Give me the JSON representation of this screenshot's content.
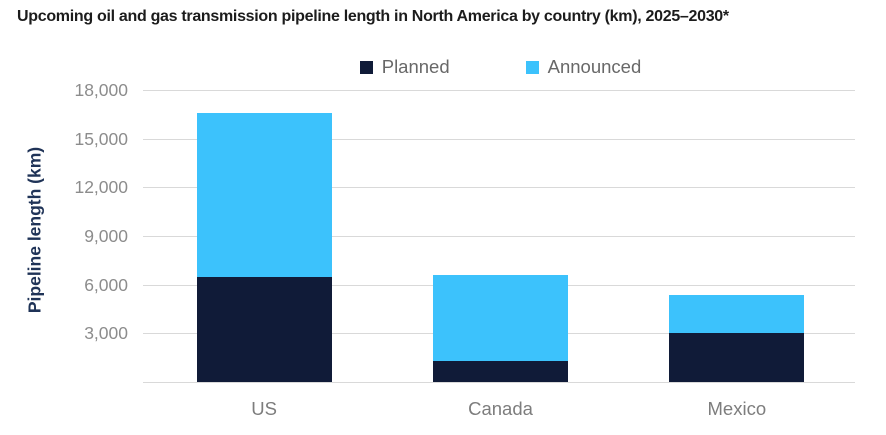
{
  "title": "Upcoming oil and gas transmission pipeline length in North America by country (km), 2025–2030*",
  "legend": {
    "items": [
      {
        "label": "Planned",
        "color": "#101b38"
      },
      {
        "label": "Announced",
        "color": "#3cc2fc"
      }
    ],
    "position": "top-center"
  },
  "chart_data": {
    "type": "bar",
    "stacked": true,
    "categories": [
      "US",
      "Canada",
      "Mexico"
    ],
    "series": [
      {
        "name": "Planned",
        "color": "#101b38",
        "values": [
          6500,
          1300,
          3000
        ]
      },
      {
        "name": "Announced",
        "color": "#3cc2fc",
        "values": [
          10100,
          5300,
          2350
        ]
      }
    ],
    "totals": [
      16600,
      6600,
      5350
    ],
    "title": "Upcoming oil and gas transmission pipeline length in North America by country (km), 2025–2030*",
    "xlabel": "",
    "ylabel": "Pipeline length (km)",
    "ylim": [
      0,
      18000
    ],
    "yticks": [
      3000,
      6000,
      9000,
      12000,
      15000,
      18000
    ],
    "ytick_labels": [
      "3,000",
      "6,000",
      "9,000",
      "12,000",
      "15,000",
      "18,000"
    ],
    "grid": true,
    "gridline_interval": 3000,
    "legend_position": "top"
  },
  "colors": {
    "planned": "#101b38",
    "announced": "#3cc2fc",
    "gridline": "#d9d9d9",
    "axis_tick_text": "#8c8c8c",
    "x_label_text": "#7d7d7d",
    "legend_text": "#686868",
    "y_axis_title_text": "#1f3357",
    "title_text": "#1c1c1c",
    "background": "#ffffff"
  }
}
